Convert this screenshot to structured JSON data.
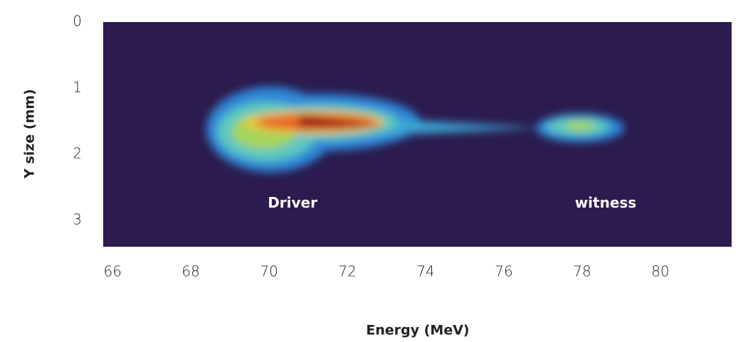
{
  "chart_data": {
    "type": "image",
    "xlabel": "Energy (MeV)",
    "ylabel": "Y size (mm)",
    "xlim": [
      65.76,
      81.82
    ],
    "xticks": [
      66,
      68,
      70,
      72,
      74,
      76,
      78,
      80
    ],
    "ylim": [
      0,
      3.4
    ],
    "yticks": [
      0,
      1,
      2,
      3
    ],
    "y_inverted": true,
    "background": "#2b1b4e",
    "annotations": [
      {
        "text": "Driver",
        "x": 70.6,
        "y": 2.75
      },
      {
        "text": "witness",
        "x": 78.6,
        "y": 2.75
      }
    ]
  }
}
